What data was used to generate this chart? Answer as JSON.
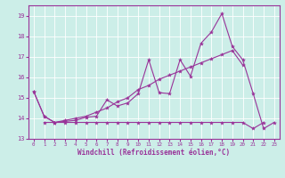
{
  "xlabel": "Windchill (Refroidissement éolien,°C)",
  "background_color": "#cceee8",
  "line_color": "#993399",
  "ylim": [
    13.0,
    19.5
  ],
  "xlim": [
    -0.5,
    23.5
  ],
  "yticks": [
    13,
    14,
    15,
    16,
    17,
    18,
    19
  ],
  "xticks": [
    0,
    1,
    2,
    3,
    4,
    5,
    6,
    7,
    8,
    9,
    10,
    11,
    12,
    13,
    14,
    15,
    16,
    17,
    18,
    19,
    20,
    21,
    22,
    23
  ],
  "line1_x": [
    0,
    1,
    2,
    3,
    4,
    5,
    6,
    7,
    8,
    9,
    10,
    11,
    12,
    13,
    14,
    15,
    16,
    17,
    18,
    19,
    20,
    21,
    22,
    23
  ],
  "line1_y": [
    15.3,
    14.1,
    13.8,
    13.85,
    13.9,
    14.05,
    14.1,
    14.9,
    14.6,
    14.75,
    15.2,
    16.85,
    15.25,
    15.2,
    16.85,
    16.05,
    17.65,
    18.2,
    19.1,
    17.5,
    16.85,
    15.2,
    13.5,
    13.8
  ],
  "line2_x": [
    0,
    1,
    2,
    3,
    4,
    5,
    6,
    7,
    8,
    9,
    10,
    11,
    12,
    13,
    14,
    15,
    16,
    17,
    18,
    19,
    20
  ],
  "line2_y": [
    15.3,
    14.1,
    13.8,
    13.9,
    14.0,
    14.1,
    14.3,
    14.5,
    14.8,
    15.0,
    15.4,
    15.6,
    15.9,
    16.1,
    16.3,
    16.5,
    16.7,
    16.9,
    17.1,
    17.3,
    16.6
  ],
  "line3_x": [
    1,
    2,
    3,
    4,
    5,
    6,
    7,
    8,
    9,
    10,
    11,
    12,
    13,
    14,
    15,
    16,
    17,
    18,
    19,
    20,
    21,
    22
  ],
  "line3_y": [
    13.8,
    13.8,
    13.8,
    13.8,
    13.8,
    13.8,
    13.8,
    13.8,
    13.8,
    13.8,
    13.8,
    13.8,
    13.8,
    13.8,
    13.8,
    13.8,
    13.8,
    13.8,
    13.8,
    13.8,
    13.5,
    13.8
  ]
}
